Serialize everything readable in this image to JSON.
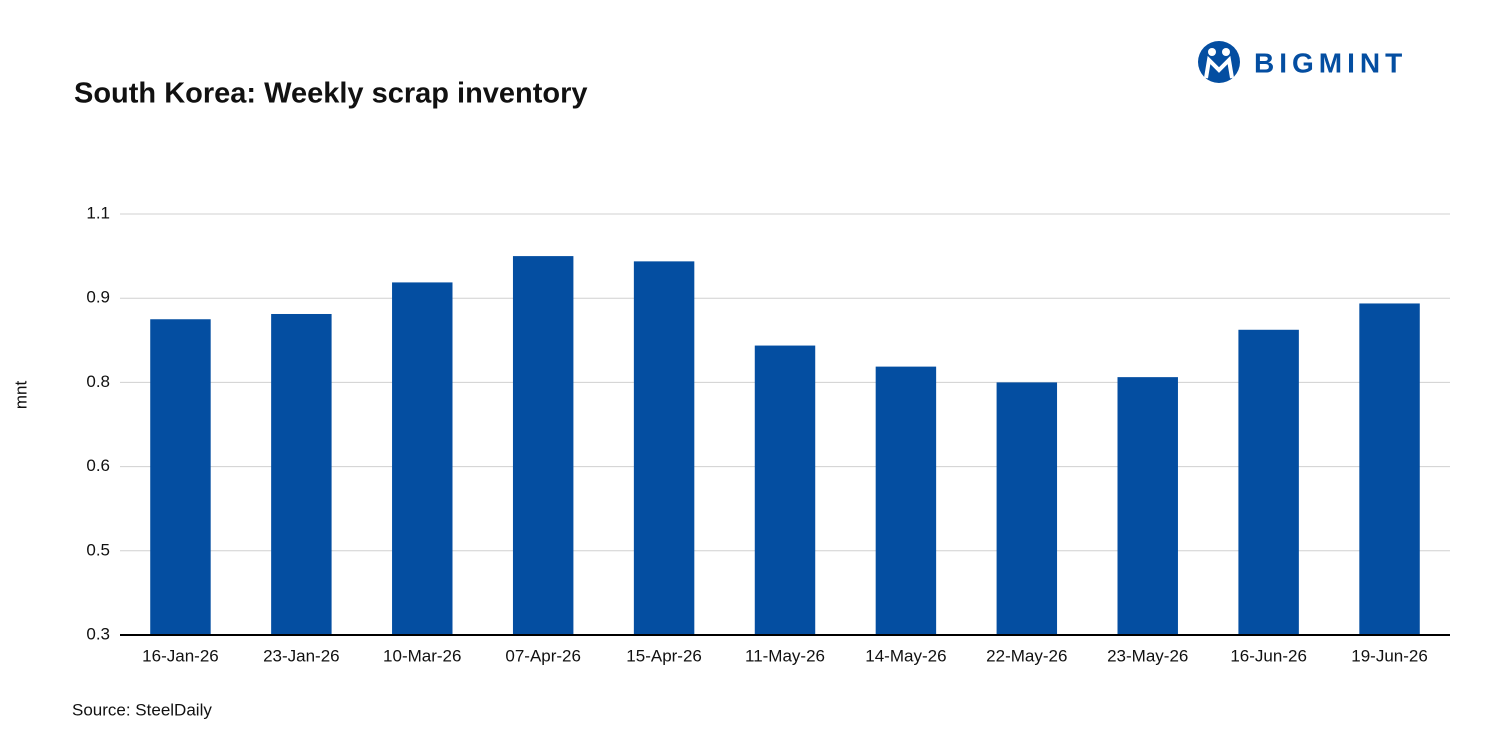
{
  "brand": "BIGMINT",
  "chart_data": {
    "type": "bar",
    "title": "South Korea: Weekly scrap inventory",
    "y_label": "mnt",
    "source": "Source: SteelDaily",
    "categories": [
      "16-Jan-26",
      "23-Jan-26",
      "10-Mar-26",
      "07-Apr-26",
      "15-Apr-26",
      "11-May-26",
      "14-May-26",
      "22-May-26",
      "23-May-26",
      "16-Jun-26",
      "19-Jun-26"
    ],
    "values": [
      0.9,
      0.91,
      0.97,
      1.02,
      1.01,
      0.85,
      0.81,
      0.78,
      0.79,
      0.88,
      0.93
    ],
    "color": "#044ea1",
    "ylim": [
      0.3,
      1.1
    ],
    "yticks": [
      0.3,
      {
        "value": 0.46,
        "label": "0.5"
      },
      {
        "value": 0.62,
        "label": "0.6"
      },
      {
        "value": 0.78,
        "label": "0.8"
      },
      {
        "value": 0.94,
        "label": "0.9"
      },
      1.1
    ],
    "grid": true
  }
}
